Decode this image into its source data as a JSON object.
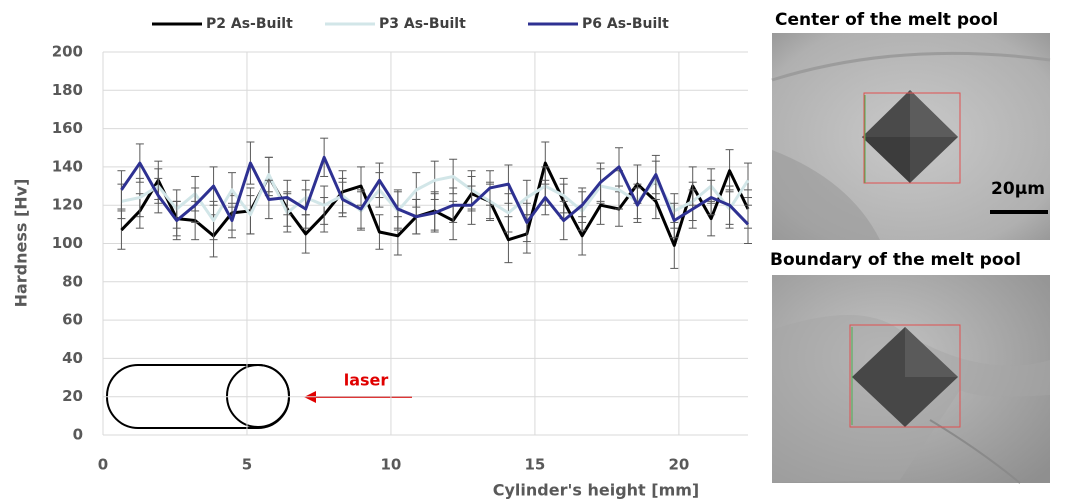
{
  "chart_data": {
    "type": "line",
    "xlabel": "Cylinder's height [mm]",
    "ylabel": "Hardness [Hv]",
    "annotation": "laser",
    "xlim": [
      0,
      22.4
    ],
    "xticks": [
      0,
      5,
      10,
      15,
      20
    ],
    "ylim": [
      0,
      200
    ],
    "yticks": [
      0,
      20,
      40,
      60,
      80,
      100,
      120,
      140,
      160,
      180,
      200
    ],
    "grid": true,
    "x": [
      0.64,
      1.28,
      1.92,
      2.56,
      3.2,
      3.84,
      4.48,
      5.12,
      5.76,
      6.4,
      7.04,
      7.68,
      8.32,
      8.96,
      9.6,
      10.24,
      10.88,
      11.52,
      12.16,
      12.8,
      13.44,
      14.08,
      14.72,
      15.36,
      16,
      16.64,
      17.28,
      17.92,
      18.56,
      19.2,
      19.84,
      20.48,
      21.12,
      21.76,
      22.4
    ],
    "series": [
      {
        "name": "P2 As-Built",
        "color": "#000000",
        "values": [
          107,
          117,
          133,
          113,
          112,
          104,
          116,
          117,
          135,
          118,
          105,
          115,
          127,
          130,
          106,
          104,
          114,
          117,
          112,
          126,
          122,
          102,
          105,
          142,
          122,
          104,
          120,
          118,
          131,
          122,
          99,
          130,
          113,
          138,
          118
        ],
        "errors": [
          10,
          9,
          10,
          9,
          10,
          11,
          9,
          12,
          10,
          9,
          10,
          9,
          11,
          10,
          9,
          10,
          9,
          10,
          10,
          9,
          10,
          12,
          10,
          11,
          9,
          10,
          10,
          9,
          10,
          9,
          12,
          10,
          9,
          11,
          10
        ]
      },
      {
        "name": "P3 As-Built",
        "color": "#d2e6e8",
        "values": [
          122,
          124,
          130,
          118,
          126,
          112,
          128,
          115,
          136,
          116,
          124,
          120,
          125,
          117,
          128,
          117,
          128,
          133,
          135,
          128,
          122,
          116,
          124,
          130,
          125,
          117,
          130,
          128,
          122,
          133,
          117,
          122,
          130,
          118,
          133
        ],
        "errors": [
          9,
          10,
          9,
          10,
          9,
          10,
          9,
          10,
          9,
          10,
          9,
          10,
          9,
          10,
          9,
          10,
          9,
          10,
          9,
          10,
          9,
          10,
          9,
          10,
          9,
          10,
          9,
          10,
          9,
          10,
          9,
          10,
          9,
          10,
          9
        ]
      },
      {
        "name": "P6 As-Built",
        "color": "#2e3192",
        "values": [
          128,
          142,
          125,
          112,
          120,
          130,
          112,
          142,
          123,
          124,
          118,
          145,
          123,
          118,
          133,
          118,
          114,
          116,
          120,
          120,
          129,
          131,
          111,
          124,
          112,
          120,
          132,
          140,
          120,
          136,
          112,
          118,
          124,
          120,
          110
        ],
        "errors": [
          10,
          10,
          9,
          10,
          9,
          10,
          9,
          11,
          10,
          9,
          10,
          10,
          9,
          10,
          9,
          10,
          9,
          10,
          9,
          10,
          9,
          10,
          10,
          9,
          10,
          9,
          10,
          10,
          9,
          10,
          9,
          10,
          9,
          10,
          10
        ]
      }
    ]
  },
  "panels": [
    {
      "title": "Center of the melt pool",
      "scale_bar": "20μm"
    },
    {
      "title": "Boundary of the melt pool"
    }
  ]
}
